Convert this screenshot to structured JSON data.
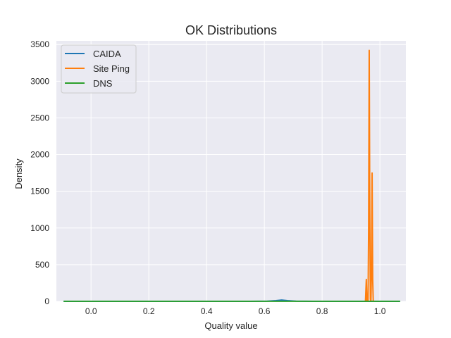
{
  "chart_data": {
    "type": "line",
    "title": "OK Distributions",
    "xlabel": "Quality value",
    "ylabel": "Density",
    "xlim": [
      -0.12,
      1.09
    ],
    "ylim": [
      0,
      3550
    ],
    "xticks": [
      0.0,
      0.2,
      0.4,
      0.6,
      0.8,
      1.0
    ],
    "xtick_labels": [
      "0.0",
      "0.2",
      "0.4",
      "0.6",
      "0.8",
      "1.0"
    ],
    "yticks": [
      0,
      500,
      1000,
      1500,
      2000,
      2500,
      3000,
      3500
    ],
    "ytick_labels": [
      "0",
      "500",
      "1000",
      "1500",
      "2000",
      "2500",
      "3000",
      "3500"
    ],
    "grid": true,
    "legend_position": "top-left",
    "background": "#eaeaf2",
    "series": [
      {
        "name": "CAIDA",
        "color": "#1f77b4",
        "x": [
          -0.095,
          0.55,
          0.61,
          0.64,
          0.66,
          0.68,
          0.71,
          0.77,
          1.07
        ],
        "y": [
          0,
          0,
          2,
          10,
          18,
          10,
          2,
          0,
          0
        ]
      },
      {
        "name": "Site Ping",
        "color": "#ff7f0e",
        "x": [
          0.95,
          0.953,
          0.955,
          0.957,
          0.959,
          0.961,
          0.963,
          0.965,
          0.967,
          0.969,
          0.971,
          0.973,
          0.975,
          0.977,
          0.979
        ],
        "y": [
          0,
          300,
          0,
          20,
          0,
          1000,
          3420,
          1200,
          30,
          0,
          500,
          1750,
          300,
          0,
          0
        ]
      },
      {
        "name": "DNS",
        "color": "#2ca02c",
        "x": [
          -0.095,
          0.3,
          0.6,
          0.9,
          1.07
        ],
        "y": [
          1,
          1,
          1,
          1,
          1
        ]
      }
    ]
  }
}
